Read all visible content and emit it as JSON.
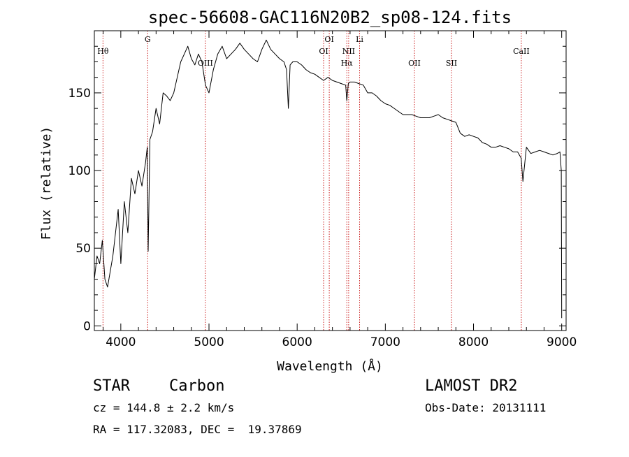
{
  "chart_data": {
    "type": "line",
    "title": "spec-56608-GAC116N20B2_sp08-124.fits",
    "xlabel": "Wavelength (Å)",
    "ylabel": "Flux (relative)",
    "xlim": [
      3700,
      9050
    ],
    "ylim": [
      -3,
      190
    ],
    "x_ticks": [
      4000,
      5000,
      6000,
      7000,
      8000,
      9000
    ],
    "y_ticks": [
      0,
      50,
      100,
      150
    ],
    "grid": false,
    "spectral_lines": [
      {
        "label": "Hθ",
        "x": 3798
      },
      {
        "label": "G",
        "x": 4305
      },
      {
        "label": "OIII",
        "x": 4959
      },
      {
        "label": "OI",
        "x": 6300
      },
      {
        "label": "OI",
        "x": 6364
      },
      {
        "label": "Hα",
        "x": 6563
      },
      {
        "label": "NII",
        "x": 6584
      },
      {
        "label": "Li",
        "x": 6708
      },
      {
        "label": "OII",
        "x": 7330
      },
      {
        "label": "SII",
        "x": 7750
      },
      {
        "label": "CaII",
        "x": 8542
      }
    ],
    "series": [
      {
        "color": "#000000",
        "x": [
          3700,
          3730,
          3760,
          3790,
          3820,
          3850,
          3880,
          3910,
          3940,
          3970,
          4000,
          4040,
          4080,
          4120,
          4160,
          4200,
          4240,
          4280,
          4300,
          4310,
          4330,
          4360,
          4400,
          4440,
          4480,
          4520,
          4560,
          4600,
          4640,
          4680,
          4720,
          4760,
          4800,
          4840,
          4880,
          4920,
          4960,
          5000,
          5050,
          5100,
          5150,
          5200,
          5250,
          5300,
          5350,
          5400,
          5450,
          5500,
          5550,
          5600,
          5650,
          5700,
          5750,
          5800,
          5850,
          5880,
          5900,
          5920,
          5950,
          6000,
          6050,
          6100,
          6150,
          6200,
          6250,
          6300,
          6350,
          6400,
          6450,
          6500,
          6550,
          6563,
          6580,
          6600,
          6650,
          6700,
          6750,
          6800,
          6850,
          6900,
          6950,
          7000,
          7050,
          7100,
          7150,
          7200,
          7250,
          7300,
          7350,
          7400,
          7450,
          7500,
          7550,
          7600,
          7650,
          7700,
          7750,
          7800,
          7850,
          7900,
          7950,
          8000,
          8050,
          8100,
          8150,
          8200,
          8250,
          8300,
          8350,
          8400,
          8450,
          8500,
          8540,
          8560,
          8600,
          8650,
          8700,
          8750,
          8800,
          8850,
          8900,
          8950,
          8980,
          8995,
          9000
        ],
        "values": [
          30,
          45,
          40,
          55,
          30,
          25,
          35,
          45,
          60,
          75,
          40,
          80,
          60,
          95,
          85,
          100,
          90,
          105,
          115,
          48,
          120,
          125,
          140,
          130,
          150,
          148,
          145,
          150,
          160,
          170,
          175,
          180,
          172,
          168,
          175,
          170,
          155,
          150,
          165,
          175,
          180,
          172,
          175,
          178,
          182,
          178,
          175,
          172,
          170,
          178,
          184,
          178,
          175,
          172,
          170,
          165,
          140,
          168,
          170,
          170,
          168,
          165,
          163,
          162,
          160,
          158,
          160,
          158,
          157,
          156,
          155,
          145,
          156,
          157,
          157,
          156,
          155,
          150,
          150,
          148,
          145,
          143,
          142,
          140,
          138,
          136,
          136,
          136,
          135,
          134,
          134,
          134,
          135,
          136,
          134,
          133,
          132,
          131,
          124,
          122,
          123,
          122,
          121,
          118,
          117,
          115,
          115,
          116,
          115,
          114,
          112,
          112,
          108,
          93,
          115,
          111,
          112,
          113,
          112,
          111,
          110,
          111,
          112,
          100,
          5
        ]
      }
    ]
  },
  "info": {
    "object_class": "STAR",
    "subclass": "Carbon",
    "survey": "LAMOST DR2",
    "redshift": "cz = 144.8 ± 2.2 km/s",
    "obs_date": "Obs-Date: 20131111",
    "coords": "RA = 117.32083, DEC =  19.37869"
  }
}
